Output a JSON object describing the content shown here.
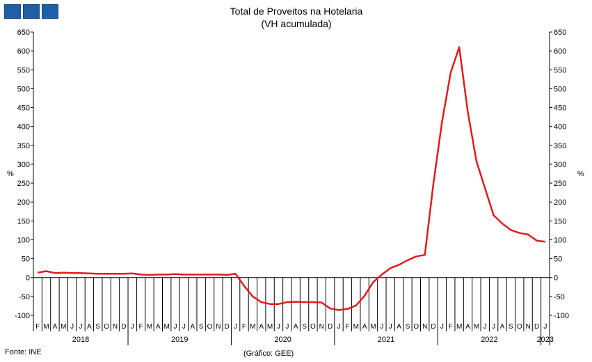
{
  "logo": {
    "blocks": 3,
    "color": "#1f5fa8"
  },
  "footer": {
    "source": "Fonte: INE",
    "credit": "(Gráfico: GEE)"
  },
  "chart_data": {
    "type": "line",
    "title": "Total de Proveitos na Hotelaria",
    "subtitle": "(VH acumulada)",
    "ylabel_left": "%",
    "ylabel_right": "%",
    "ylim": [
      -100,
      650
    ],
    "yticks": [
      -100,
      -50,
      0,
      50,
      100,
      150,
      200,
      250,
      300,
      350,
      400,
      450,
      500,
      550,
      600,
      650
    ],
    "grid": false,
    "line_color": "#e31a1c",
    "x_months": [
      "F",
      "M",
      "A",
      "M",
      "J",
      "J",
      "A",
      "S",
      "O",
      "N",
      "D",
      "J",
      "F",
      "M",
      "A",
      "M",
      "J",
      "J",
      "A",
      "S",
      "O",
      "N",
      "D",
      "J",
      "F",
      "M",
      "A",
      "M",
      "J",
      "J",
      "A",
      "S",
      "O",
      "N",
      "D",
      "J",
      "F",
      "M",
      "A",
      "M",
      "J",
      "J",
      "A",
      "S",
      "O",
      "N",
      "D",
      "J",
      "F",
      "M",
      "A",
      "M",
      "J",
      "J",
      "A",
      "S",
      "O",
      "N",
      "D",
      "J"
    ],
    "years": [
      {
        "label": "2018",
        "start": 0,
        "end": 10
      },
      {
        "label": "2019",
        "start": 11,
        "end": 22
      },
      {
        "label": "2020",
        "start": 23,
        "end": 34
      },
      {
        "label": "2021",
        "start": 35,
        "end": 46
      },
      {
        "label": "2022",
        "start": 47,
        "end": 58
      },
      {
        "label": "2023",
        "start": 59,
        "end": 59
      }
    ],
    "series": [
      {
        "values": [
          13,
          17,
          12,
          13,
          12,
          12,
          11,
          10,
          10,
          10,
          10,
          11,
          8,
          7,
          8,
          8,
          9,
          8,
          8,
          8,
          8,
          8,
          7,
          10,
          -22,
          -50,
          -65,
          -70,
          -70,
          -65,
          -64,
          -65,
          -65,
          -66,
          -82,
          -86,
          -83,
          -74,
          -48,
          -12,
          8,
          25,
          34,
          46,
          56,
          60,
          250,
          412,
          542,
          610,
          438,
          308,
          236,
          165,
          143,
          126,
          118,
          114,
          98,
          95
        ]
      }
    ]
  }
}
